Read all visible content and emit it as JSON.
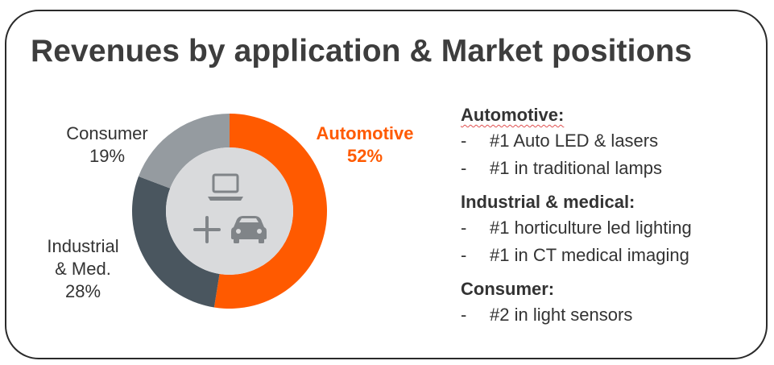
{
  "header": {
    "title": "Revenues by application & Market positions"
  },
  "chart_data": {
    "type": "pie",
    "title": "",
    "categories": [
      "Automotive",
      "Industrial & Med.",
      "Consumer"
    ],
    "values": [
      52,
      28,
      19
    ],
    "unit": "%",
    "labels": [
      {
        "name": "Automotive",
        "pct": "52%"
      },
      {
        "name_line1": "Industrial",
        "name_line2": "& Med.",
        "pct": "28%"
      },
      {
        "name": "Consumer",
        "pct": "19%"
      }
    ],
    "colors": [
      "#ff5a00",
      "#4a565f",
      "#959ba0"
    ],
    "center_icons": [
      "laptop-icon",
      "plus-icon",
      "car-icon"
    ]
  },
  "market_positions": [
    {
      "heading": "Automotive:",
      "items": [
        "#1 Auto LED & lasers",
        "#1 in traditional lamps"
      ]
    },
    {
      "heading": "Industrial & medical:",
      "items": [
        "#1 horticulture led lighting",
        "#1 in CT medical imaging"
      ]
    },
    {
      "heading": "Consumer:",
      "items": [
        "#2 in light sensors"
      ]
    }
  ],
  "bullet_marker": "-"
}
